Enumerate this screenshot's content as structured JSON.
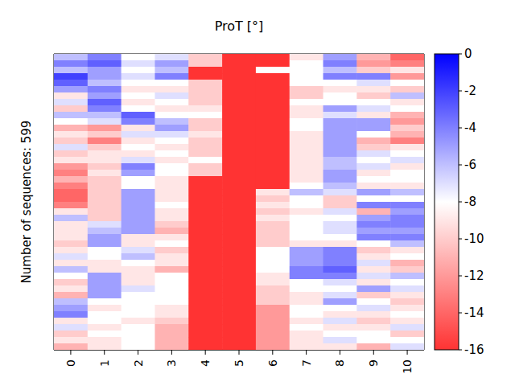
{
  "chart_data": {
    "type": "heatmap",
    "title": "ProT [°]",
    "y_label": "Number of sequences: 599",
    "categories": [
      "0",
      "1",
      "2",
      "3",
      "4",
      "5",
      "6",
      "7",
      "8",
      "9",
      "10"
    ],
    "tick_labels": "x",
    "cells": [
      [
        -6,
        -4,
        -8,
        -7,
        -10,
        -16,
        -16,
        -9,
        -5,
        -11,
        -14
      ],
      [
        -4,
        -3,
        -7,
        -5,
        -10,
        -16,
        -16,
        -8,
        -4,
        -12,
        -13
      ],
      [
        -6,
        -5,
        -8,
        -6,
        -16,
        -16,
        -8,
        -8,
        -6,
        -10,
        -9
      ],
      [
        -2,
        -5,
        -7,
        -4,
        -16,
        -16,
        -16,
        -8,
        -4,
        -4,
        -12
      ],
      [
        -3,
        -6,
        -8,
        -8,
        -10,
        -16,
        -16,
        -8,
        -8,
        -7,
        -8
      ],
      [
        -5,
        -4,
        -9,
        -9,
        -10,
        -16,
        -16,
        -10,
        -9,
        -9,
        -10
      ],
      [
        -9,
        -5,
        -8,
        -7,
        -10,
        -16,
        -16,
        -10,
        -8,
        -10,
        -6
      ],
      [
        -7,
        -3,
        -9,
        -8,
        -10,
        -16,
        -16,
        -8,
        -8,
        -8,
        -9
      ],
      [
        -10,
        -4,
        -8,
        -9,
        -9,
        -16,
        -16,
        -9,
        -5,
        -7,
        -8
      ],
      [
        -6,
        -6,
        -3,
        -8,
        -8,
        -16,
        -16,
        -9,
        -7,
        -9,
        -11
      ],
      [
        -8,
        -7,
        -4,
        -6,
        -10,
        -16,
        -16,
        -8,
        -5,
        -5,
        -12
      ],
      [
        -11,
        -12,
        -9,
        -5,
        -10,
        -16,
        -16,
        -8,
        -5,
        -5,
        -10
      ],
      [
        -9,
        -10,
        -7,
        -7,
        -9,
        -16,
        -16,
        -9,
        -5,
        -8,
        -11
      ],
      [
        -10,
        -13,
        -9,
        -8,
        -10,
        -16,
        -16,
        -9,
        -5,
        -11,
        -13
      ],
      [
        -7,
        -10,
        -8,
        -9,
        -10,
        -16,
        -16,
        -9,
        -5,
        -10,
        -9
      ],
      [
        -10,
        -9,
        -9,
        -8,
        -10,
        -16,
        -16,
        -9,
        -5,
        -7,
        -8
      ],
      [
        -9,
        -9,
        -7,
        -9,
        -8,
        -16,
        -16,
        -9,
        -6,
        -8,
        -7
      ],
      [
        -12,
        -10,
        -4,
        -8,
        -10,
        -16,
        -16,
        -9,
        -6,
        -7,
        -9
      ],
      [
        -13,
        -9,
        -5,
        -8,
        -10,
        -16,
        -16,
        -9,
        -5,
        -9,
        -8
      ],
      [
        -11,
        -10,
        -8,
        -9,
        -16,
        -16,
        -16,
        -9,
        -5,
        -8,
        -8
      ],
      [
        -13,
        -10,
        -8,
        -9,
        -16,
        -16,
        -16,
        -8,
        -6,
        -9,
        -9
      ],
      [
        -14,
        -10,
        -5,
        -9,
        -16,
        -16,
        -9,
        -6,
        -7,
        -5,
        -6
      ],
      [
        -14,
        -10,
        -5,
        -9,
        -16,
        -16,
        -10,
        -8,
        -10,
        -8,
        -8
      ],
      [
        -13,
        -10,
        -5,
        -8,
        -16,
        -16,
        -9,
        -8,
        -10,
        -4,
        -4
      ],
      [
        -9,
        -10,
        -5,
        -9,
        -16,
        -16,
        -10,
        -9,
        -7,
        -11,
        -5
      ],
      [
        -6,
        -10,
        -5,
        -9,
        -16,
        -16,
        -9,
        -8,
        -8,
        -5,
        -4
      ],
      [
        -9,
        -7,
        -5,
        -10,
        -16,
        -16,
        -10,
        -8,
        -7,
        -4,
        -4
      ],
      [
        -9,
        -6,
        -5,
        -11,
        -16,
        -16,
        -10,
        -8,
        -7,
        -5,
        -5
      ],
      [
        -9,
        -5,
        -9,
        -9,
        -16,
        -16,
        -10,
        -8,
        -8,
        -4,
        -4
      ],
      [
        -10,
        -5,
        -9,
        -8,
        -16,
        -16,
        -10,
        -9,
        -9,
        -8,
        -6
      ],
      [
        -9,
        -8,
        -7,
        -10,
        -16,
        -16,
        -8,
        -5,
        -4,
        -10,
        -9
      ],
      [
        -7,
        -8,
        -6,
        -9,
        -16,
        -16,
        -8,
        -5,
        -4,
        -9,
        -8
      ],
      [
        -9,
        -9,
        -8,
        -9,
        -16,
        -16,
        -8,
        -5,
        -4,
        -7,
        -11
      ],
      [
        -6,
        -9,
        -9,
        -11,
        -16,
        -16,
        -8,
        -4,
        -3,
        -9,
        -10
      ],
      [
        -8,
        -5,
        -9,
        -8,
        -16,
        -16,
        -9,
        -4,
        -4,
        -7,
        -6
      ],
      [
        -10,
        -5,
        -9,
        -8,
        -16,
        -16,
        -9,
        -8,
        -7,
        -9,
        -8
      ],
      [
        -9,
        -5,
        -7,
        -8,
        -16,
        -16,
        -10,
        -8,
        -8,
        -5,
        -7
      ],
      [
        -11,
        -5,
        -8,
        -8,
        -16,
        -16,
        -10,
        -9,
        -7,
        -10,
        -9
      ],
      [
        -6,
        -8,
        -8,
        -8,
        -16,
        -16,
        -10,
        -9,
        -5,
        -8,
        -10
      ],
      [
        -5,
        -9,
        -8,
        -9,
        -16,
        -16,
        -12,
        -8,
        -8,
        -7,
        -9
      ],
      [
        -4,
        -8,
        -8,
        -9,
        -16,
        -16,
        -12,
        -8,
        -9,
        -9,
        -8
      ],
      [
        -9,
        -8,
        -9,
        -10,
        -16,
        -16,
        -12,
        -9,
        -7,
        -10,
        -9
      ],
      [
        -7,
        -9,
        -8,
        -11,
        -16,
        -16,
        -12,
        -8,
        -9,
        -9,
        -7
      ],
      [
        -10,
        -8,
        -8,
        -11,
        -16,
        -16,
        -12,
        -9,
        -8,
        -8,
        -10
      ],
      [
        -9,
        -9,
        -8,
        -11,
        -16,
        -16,
        -12,
        -9,
        -7,
        -8,
        -8
      ],
      [
        -11,
        -9,
        -8,
        -11,
        -16,
        -16,
        -12,
        -9,
        -9,
        -11,
        -7
      ]
    ],
    "colorbar": {
      "range": [
        -16,
        0
      ],
      "ticks": [
        0,
        -2,
        -4,
        -6,
        -8,
        -10,
        -12,
        -14,
        -16
      ]
    }
  }
}
